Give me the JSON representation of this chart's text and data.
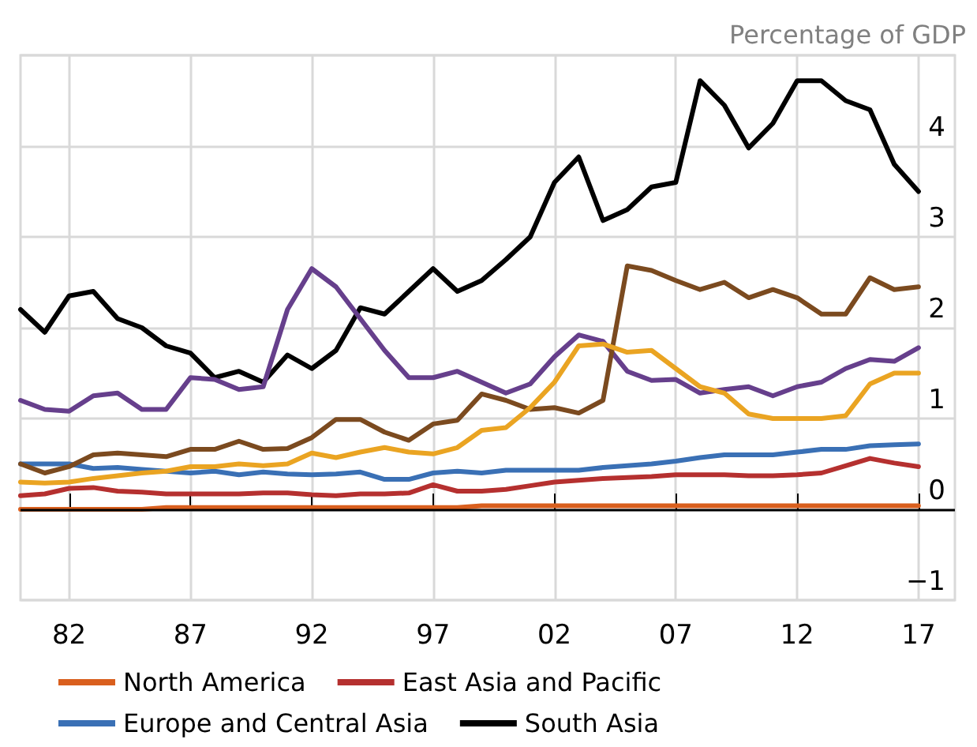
{
  "chart_data": {
    "type": "line",
    "ylabel": "Percentage of GDP",
    "x": [
      1980,
      1981,
      1982,
      1983,
      1984,
      1985,
      1986,
      1987,
      1988,
      1989,
      1990,
      1991,
      1992,
      1993,
      1994,
      1995,
      1996,
      1997,
      1998,
      1999,
      2000,
      2001,
      2002,
      2003,
      2004,
      2005,
      2006,
      2007,
      2008,
      2009,
      2010,
      2011,
      2012,
      2013,
      2014,
      2015,
      2016,
      2017
    ],
    "series": [
      {
        "name": "North America",
        "color": "#d95f1e",
        "values": [
          0.0,
          0.0,
          0.0,
          0.0,
          0.0,
          0.0,
          0.02,
          0.02,
          0.02,
          0.02,
          0.02,
          0.02,
          0.02,
          0.02,
          0.02,
          0.02,
          0.02,
          0.02,
          0.02,
          0.04,
          0.04,
          0.04,
          0.04,
          0.04,
          0.04,
          0.04,
          0.04,
          0.04,
          0.04,
          0.04,
          0.04,
          0.04,
          0.04,
          0.04,
          0.04,
          0.04,
          0.04,
          0.04
        ]
      },
      {
        "name": "East Asia and Pacific",
        "color": "#b5302f",
        "values": [
          0.15,
          0.17,
          0.23,
          0.24,
          0.2,
          0.19,
          0.17,
          0.17,
          0.17,
          0.17,
          0.18,
          0.18,
          0.16,
          0.15,
          0.17,
          0.17,
          0.18,
          0.27,
          0.2,
          0.2,
          0.22,
          0.26,
          0.3,
          0.32,
          0.34,
          0.35,
          0.36,
          0.38,
          0.38,
          0.38,
          0.37,
          0.37,
          0.38,
          0.4,
          0.48,
          0.56,
          0.51,
          0.47
        ]
      },
      {
        "name": "Europe and Central Asia",
        "color": "#3a70b5",
        "values": [
          0.5,
          0.5,
          0.5,
          0.45,
          0.46,
          0.44,
          0.42,
          0.4,
          0.42,
          0.38,
          0.41,
          0.39,
          0.38,
          0.39,
          0.41,
          0.33,
          0.33,
          0.4,
          0.42,
          0.4,
          0.43,
          0.43,
          0.43,
          0.43,
          0.46,
          0.48,
          0.5,
          0.53,
          0.57,
          0.6,
          0.6,
          0.6,
          0.63,
          0.66,
          0.66,
          0.7,
          0.71,
          0.72
        ]
      },
      {
        "name": "South Asia",
        "color": "#000000",
        "values": [
          2.2,
          1.95,
          2.35,
          2.4,
          2.1,
          2.0,
          1.8,
          1.72,
          1.45,
          1.52,
          1.4,
          1.7,
          1.55,
          1.75,
          2.22,
          2.15,
          2.4,
          2.65,
          2.4,
          2.52,
          2.75,
          3.0,
          3.6,
          3.88,
          3.18,
          3.3,
          3.55,
          3.6,
          4.72,
          4.45,
          3.98,
          4.25,
          4.72,
          4.72,
          4.5,
          4.4,
          3.8,
          3.5
        ]
      },
      {
        "color": "#663f8c",
        "values": [
          1.2,
          1.1,
          1.08,
          1.25,
          1.28,
          1.1,
          1.1,
          1.45,
          1.43,
          1.32,
          1.35,
          2.2,
          2.65,
          2.45,
          2.1,
          1.75,
          1.45,
          1.45,
          1.52,
          1.4,
          1.28,
          1.38,
          1.68,
          1.92,
          1.85,
          1.52,
          1.42,
          1.43,
          1.28,
          1.32,
          1.35,
          1.25,
          1.35,
          1.4,
          1.55,
          1.65,
          1.63,
          1.78
        ]
      },
      {
        "color": "#7b4a1f",
        "values": [
          0.5,
          0.4,
          0.47,
          0.6,
          0.62,
          0.6,
          0.58,
          0.66,
          0.66,
          0.75,
          0.66,
          0.67,
          0.79,
          0.99,
          0.99,
          0.85,
          0.76,
          0.94,
          0.98,
          1.27,
          1.2,
          1.1,
          1.12,
          1.06,
          1.2,
          2.68,
          2.63,
          2.52,
          2.42,
          2.5,
          2.33,
          2.42,
          2.33,
          2.15,
          2.15,
          2.55,
          2.42,
          2.45
        ]
      },
      {
        "color": "#eaa422",
        "values": [
          0.3,
          0.29,
          0.3,
          0.34,
          0.37,
          0.4,
          0.42,
          0.47,
          0.47,
          0.5,
          0.48,
          0.5,
          0.62,
          0.57,
          0.63,
          0.68,
          0.63,
          0.61,
          0.68,
          0.87,
          0.9,
          1.12,
          1.4,
          1.8,
          1.82,
          1.73,
          1.75,
          1.55,
          1.35,
          1.28,
          1.05,
          1.0,
          1.0,
          1.0,
          1.03,
          1.38,
          1.5,
          1.5
        ]
      }
    ],
    "xlim": [
      1980,
      2018.5
    ],
    "xticks": [
      {
        "value": 1982,
        "label": "82"
      },
      {
        "value": 1987,
        "label": "87"
      },
      {
        "value": 1992,
        "label": "92"
      },
      {
        "value": 1997,
        "label": "97"
      },
      {
        "value": 2002,
        "label": "02"
      },
      {
        "value": 2007,
        "label": "07"
      },
      {
        "value": 2012,
        "label": "12"
      },
      {
        "value": 2017,
        "label": "17"
      }
    ],
    "ylim": [
      -1,
      5
    ],
    "yticks": [
      {
        "value": -1,
        "label": "−1"
      },
      0,
      1,
      2,
      3,
      4,
      {
        "value": 5,
        "label": null
      }
    ],
    "ref_lines": [
      {
        "axis": "y",
        "value": 0,
        "color": "#000000"
      }
    ],
    "grid": true,
    "legend": "bottom",
    "marker": "none",
    "line_style": "solid"
  }
}
